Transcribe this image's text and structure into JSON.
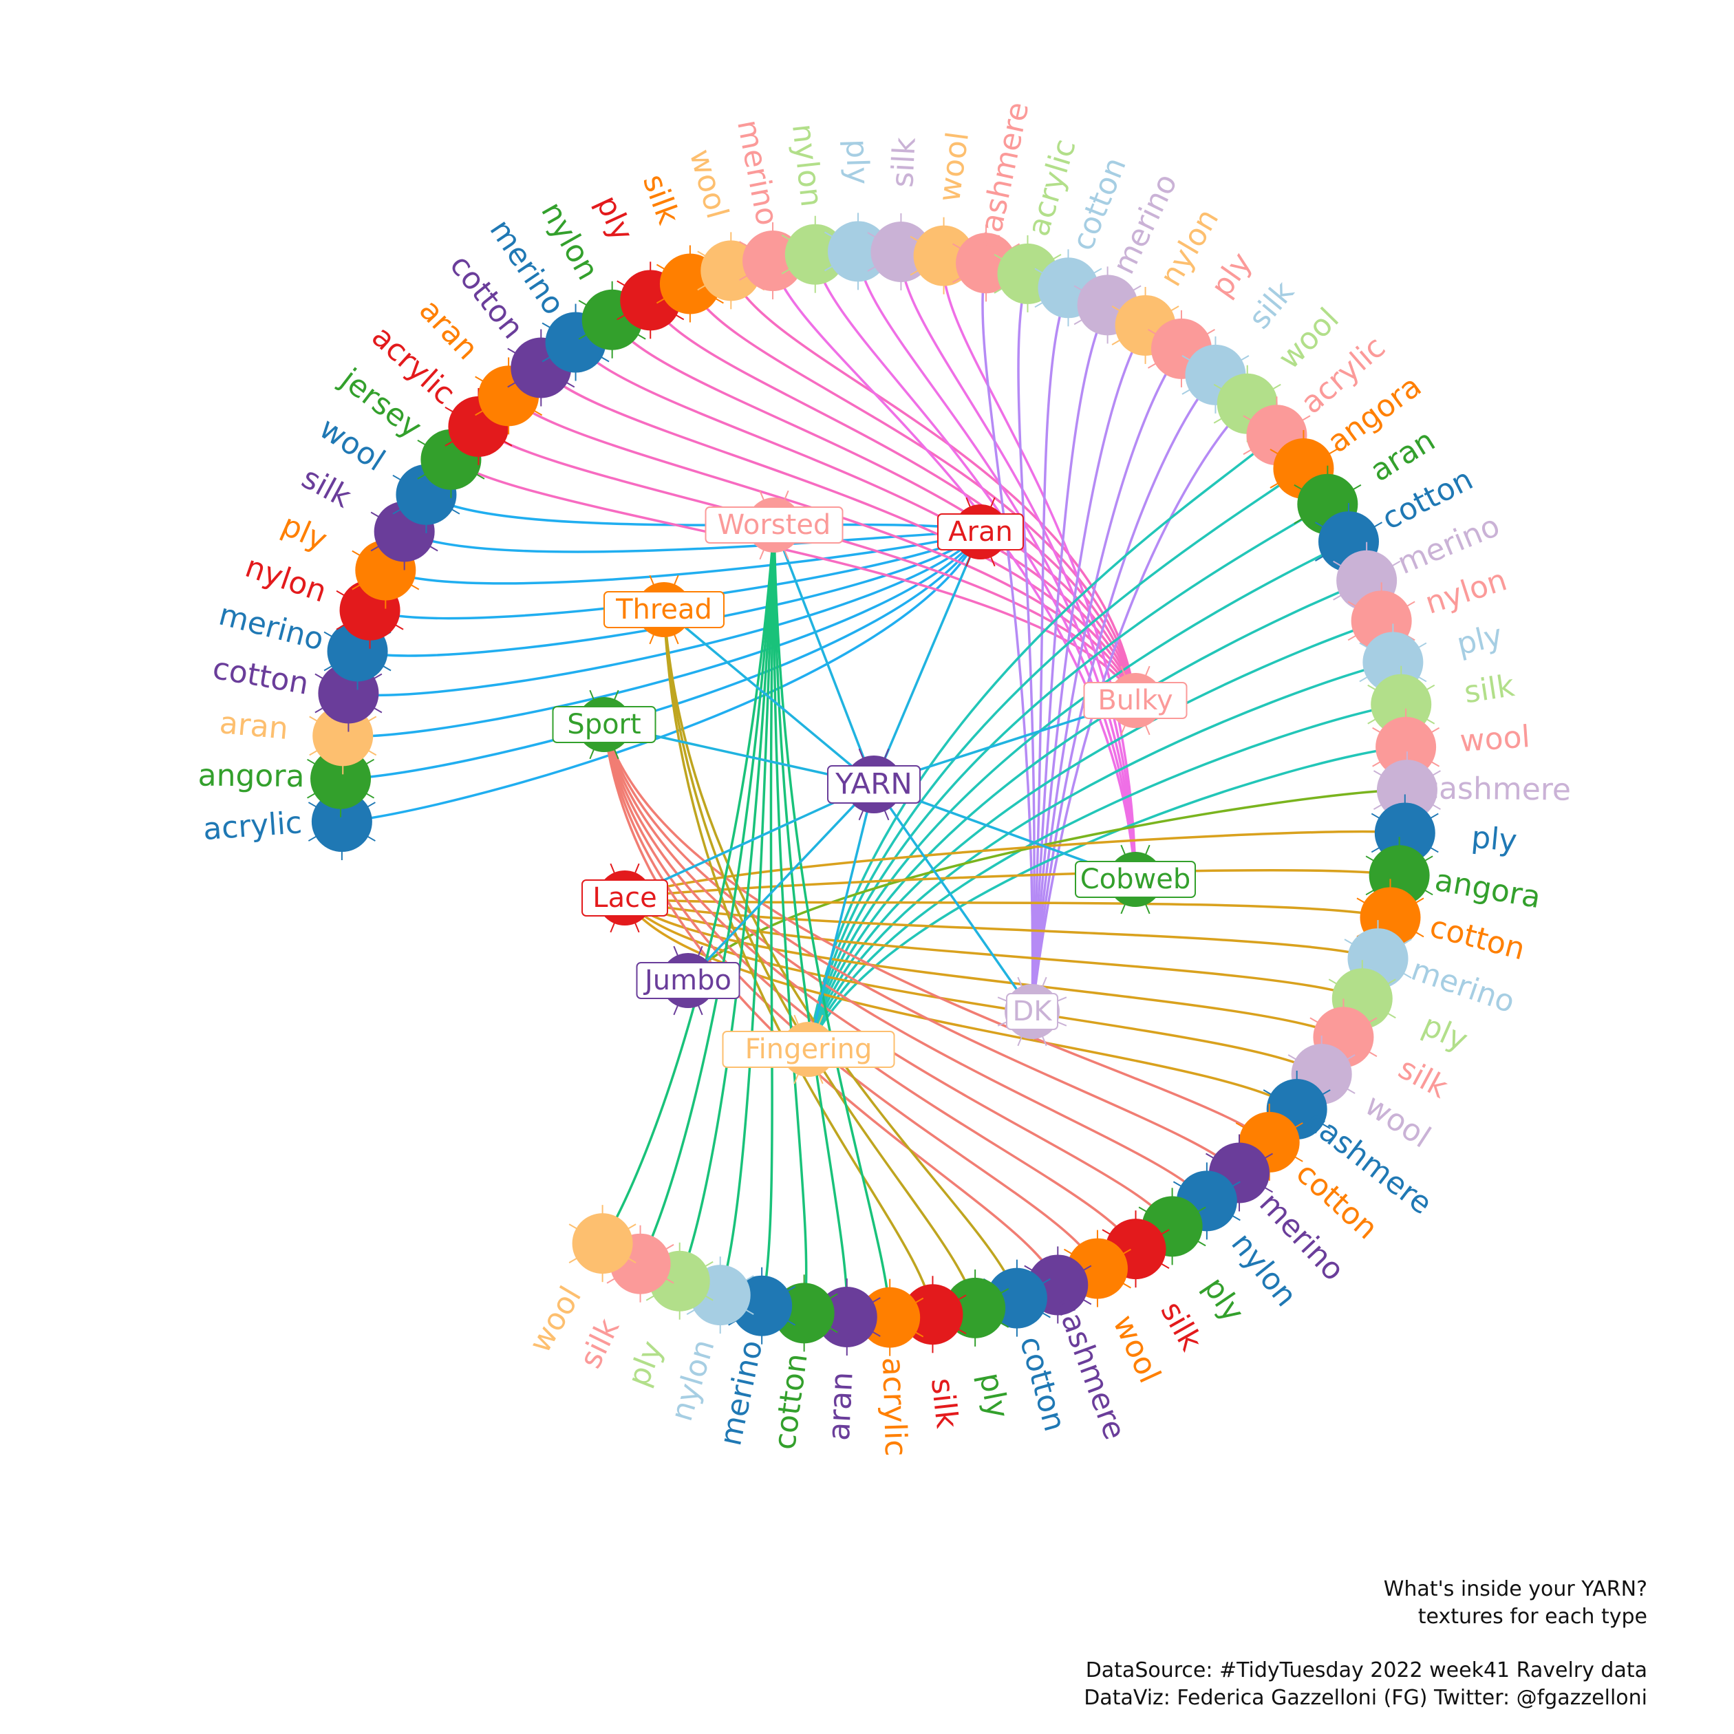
{
  "center": {
    "label": "YARN",
    "color": "#6a3d9a"
  },
  "edge_color": "#20b3e0",
  "palette": [
    "#1f78b4",
    "#33a02c",
    "#fdbf6f",
    "#6a3d9a",
    "#1f78b4",
    "#e31a1c",
    "#ff7f00",
    "#6a3d9a",
    "#1f78b4",
    "#33a02c",
    "#e31a1c",
    "#ff7f00",
    "#6a3d9a",
    "#1f78b4",
    "#33a02c",
    "#e31a1c",
    "#ff7f00",
    "#fdbf6f",
    "#fb9a99",
    "#b2df8a",
    "#a6cee3",
    "#cab2d6",
    "#fdbf6f",
    "#fb9a99",
    "#b2df8a",
    "#a6cee3",
    "#cab2d6",
    "#fdbf6f",
    "#fb9a99",
    "#a6cee3",
    "#b2df8a",
    "#fb9a99",
    "#ff7f00",
    "#33a02c",
    "#1f78b4",
    "#cab2d6",
    "#fb9a99",
    "#a6cee3",
    "#b2df8a",
    "#fb9a99",
    "#cab2d6",
    "#1f78b4",
    "#33a02c",
    "#ff7f00",
    "#a6cee3",
    "#b2df8a",
    "#fb9a99",
    "#cab2d6",
    "#1f78b4",
    "#ff7f00",
    "#6a3d9a",
    "#1f78b4",
    "#33a02c",
    "#e31a1c",
    "#ff7f00",
    "#6a3d9a",
    "#1f78b4",
    "#33a02c",
    "#e31a1c",
    "#ff7f00",
    "#6a3d9a",
    "#33a02c",
    "#1f78b4",
    "#a6cee3",
    "#b2df8a",
    "#fb9a99",
    "#fdbf6f",
    "#cab2d6",
    "#a6cee3",
    "#fb9a99",
    "#fdbf6f",
    "#cab2d6",
    "#a6cee3",
    "#b2df8a",
    "#fdbf6f",
    "#a6cee3",
    "#b2df8a",
    "#e31a1c",
    "#cab2d6"
  ],
  "groups": [
    {
      "label": "Aran",
      "color": "#e31a1c",
      "edge_color": "#20aef0",
      "items": [
        "acrylic",
        "angora",
        "aran",
        "cotton",
        "merino",
        "nylon",
        "ply",
        "silk",
        "wool"
      ]
    },
    {
      "label": "Bulky",
      "color": "#fb9a99",
      "edge_color": "#f76bc1",
      "items": [
        "jersey",
        "acrylic",
        "aran",
        "cotton",
        "merino",
        "nylon",
        "ply",
        "silk",
        "wool"
      ]
    },
    {
      "label": "Cobweb",
      "color": "#33a02c",
      "edge_color": "#ef6fe6",
      "items": [
        "merino",
        "nylon",
        "ply",
        "silk",
        "wool"
      ]
    },
    {
      "label": "DK",
      "color": "#cab2d6",
      "edge_color": "#b58af5",
      "items": [
        "cashmere",
        "acrylic",
        "cotton",
        "merino",
        "nylon",
        "ply",
        "silk",
        "wool"
      ]
    },
    {
      "label": "Fingering",
      "color": "#fdbf6f",
      "edge_color": "#22c6b8",
      "items": [
        "acrylic",
        "angora",
        "aran",
        "cotton",
        "merino",
        "nylon",
        "ply",
        "silk",
        "wool"
      ]
    },
    {
      "label": "Jumbo",
      "color": "#6a3d9a",
      "edge_color": "#7ab41e",
      "items": [
        "cashmere"
      ]
    },
    {
      "label": "Lace",
      "color": "#e31a1c",
      "edge_color": "#d9a11d",
      "items": [
        "ply",
        "angora",
        "cotton",
        "merino",
        "ply",
        "silk",
        "wool",
        "cashmere"
      ]
    },
    {
      "label": "Sport",
      "color": "#33a02c",
      "edge_color": "#f17d73",
      "items": [
        "cotton",
        "merino",
        "nylon",
        "ply",
        "silk",
        "wool",
        "cashmere"
      ]
    },
    {
      "label": "Thread",
      "color": "#ff7f00",
      "edge_color": "#bfa51f",
      "items": [
        "cotton",
        "ply",
        "silk"
      ]
    },
    {
      "label": "Worsted",
      "color": "#fb9a99",
      "edge_color": "#19c27a",
      "items": [
        "acrylic",
        "aran",
        "cotton",
        "merino",
        "nylon",
        "ply",
        "silk",
        "wool"
      ]
    }
  ],
  "caption": {
    "title_line1": "What's inside your YARN?",
    "title_line2": "textures for each type",
    "source": "DataSource: #TidyTuesday 2022 week41 Ravelry data",
    "credit": "DataViz: Federica Gazzelloni (FG) Twitter: @fgazzelloni"
  }
}
